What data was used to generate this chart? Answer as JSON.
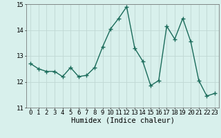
{
  "x": [
    0,
    1,
    2,
    3,
    4,
    5,
    6,
    7,
    8,
    9,
    10,
    11,
    12,
    13,
    14,
    15,
    16,
    17,
    18,
    19,
    20,
    21,
    22,
    23
  ],
  "y": [
    12.7,
    12.5,
    12.4,
    12.4,
    12.2,
    12.55,
    12.2,
    12.25,
    12.55,
    13.35,
    14.05,
    14.45,
    14.9,
    13.3,
    12.8,
    11.85,
    12.05,
    14.15,
    13.65,
    14.45,
    13.55,
    12.05,
    11.45,
    11.55
  ],
  "line_color": "#1a6b5a",
  "marker": "+",
  "marker_size": 4,
  "bg_color": "#d8f0ec",
  "grid_color": "#c0d8d4",
  "xlabel": "Humidex (Indice chaleur)",
  "xlim": [
    -0.5,
    23.5
  ],
  "ylim": [
    11,
    15
  ],
  "yticks": [
    11,
    12,
    13,
    14,
    15
  ],
  "xticks": [
    0,
    1,
    2,
    3,
    4,
    5,
    6,
    7,
    8,
    9,
    10,
    11,
    12,
    13,
    14,
    15,
    16,
    17,
    18,
    19,
    20,
    21,
    22,
    23
  ],
  "xlabel_fontsize": 7.5,
  "tick_fontsize": 6.5,
  "line_width": 1.0,
  "marker_linewidth": 1.0
}
